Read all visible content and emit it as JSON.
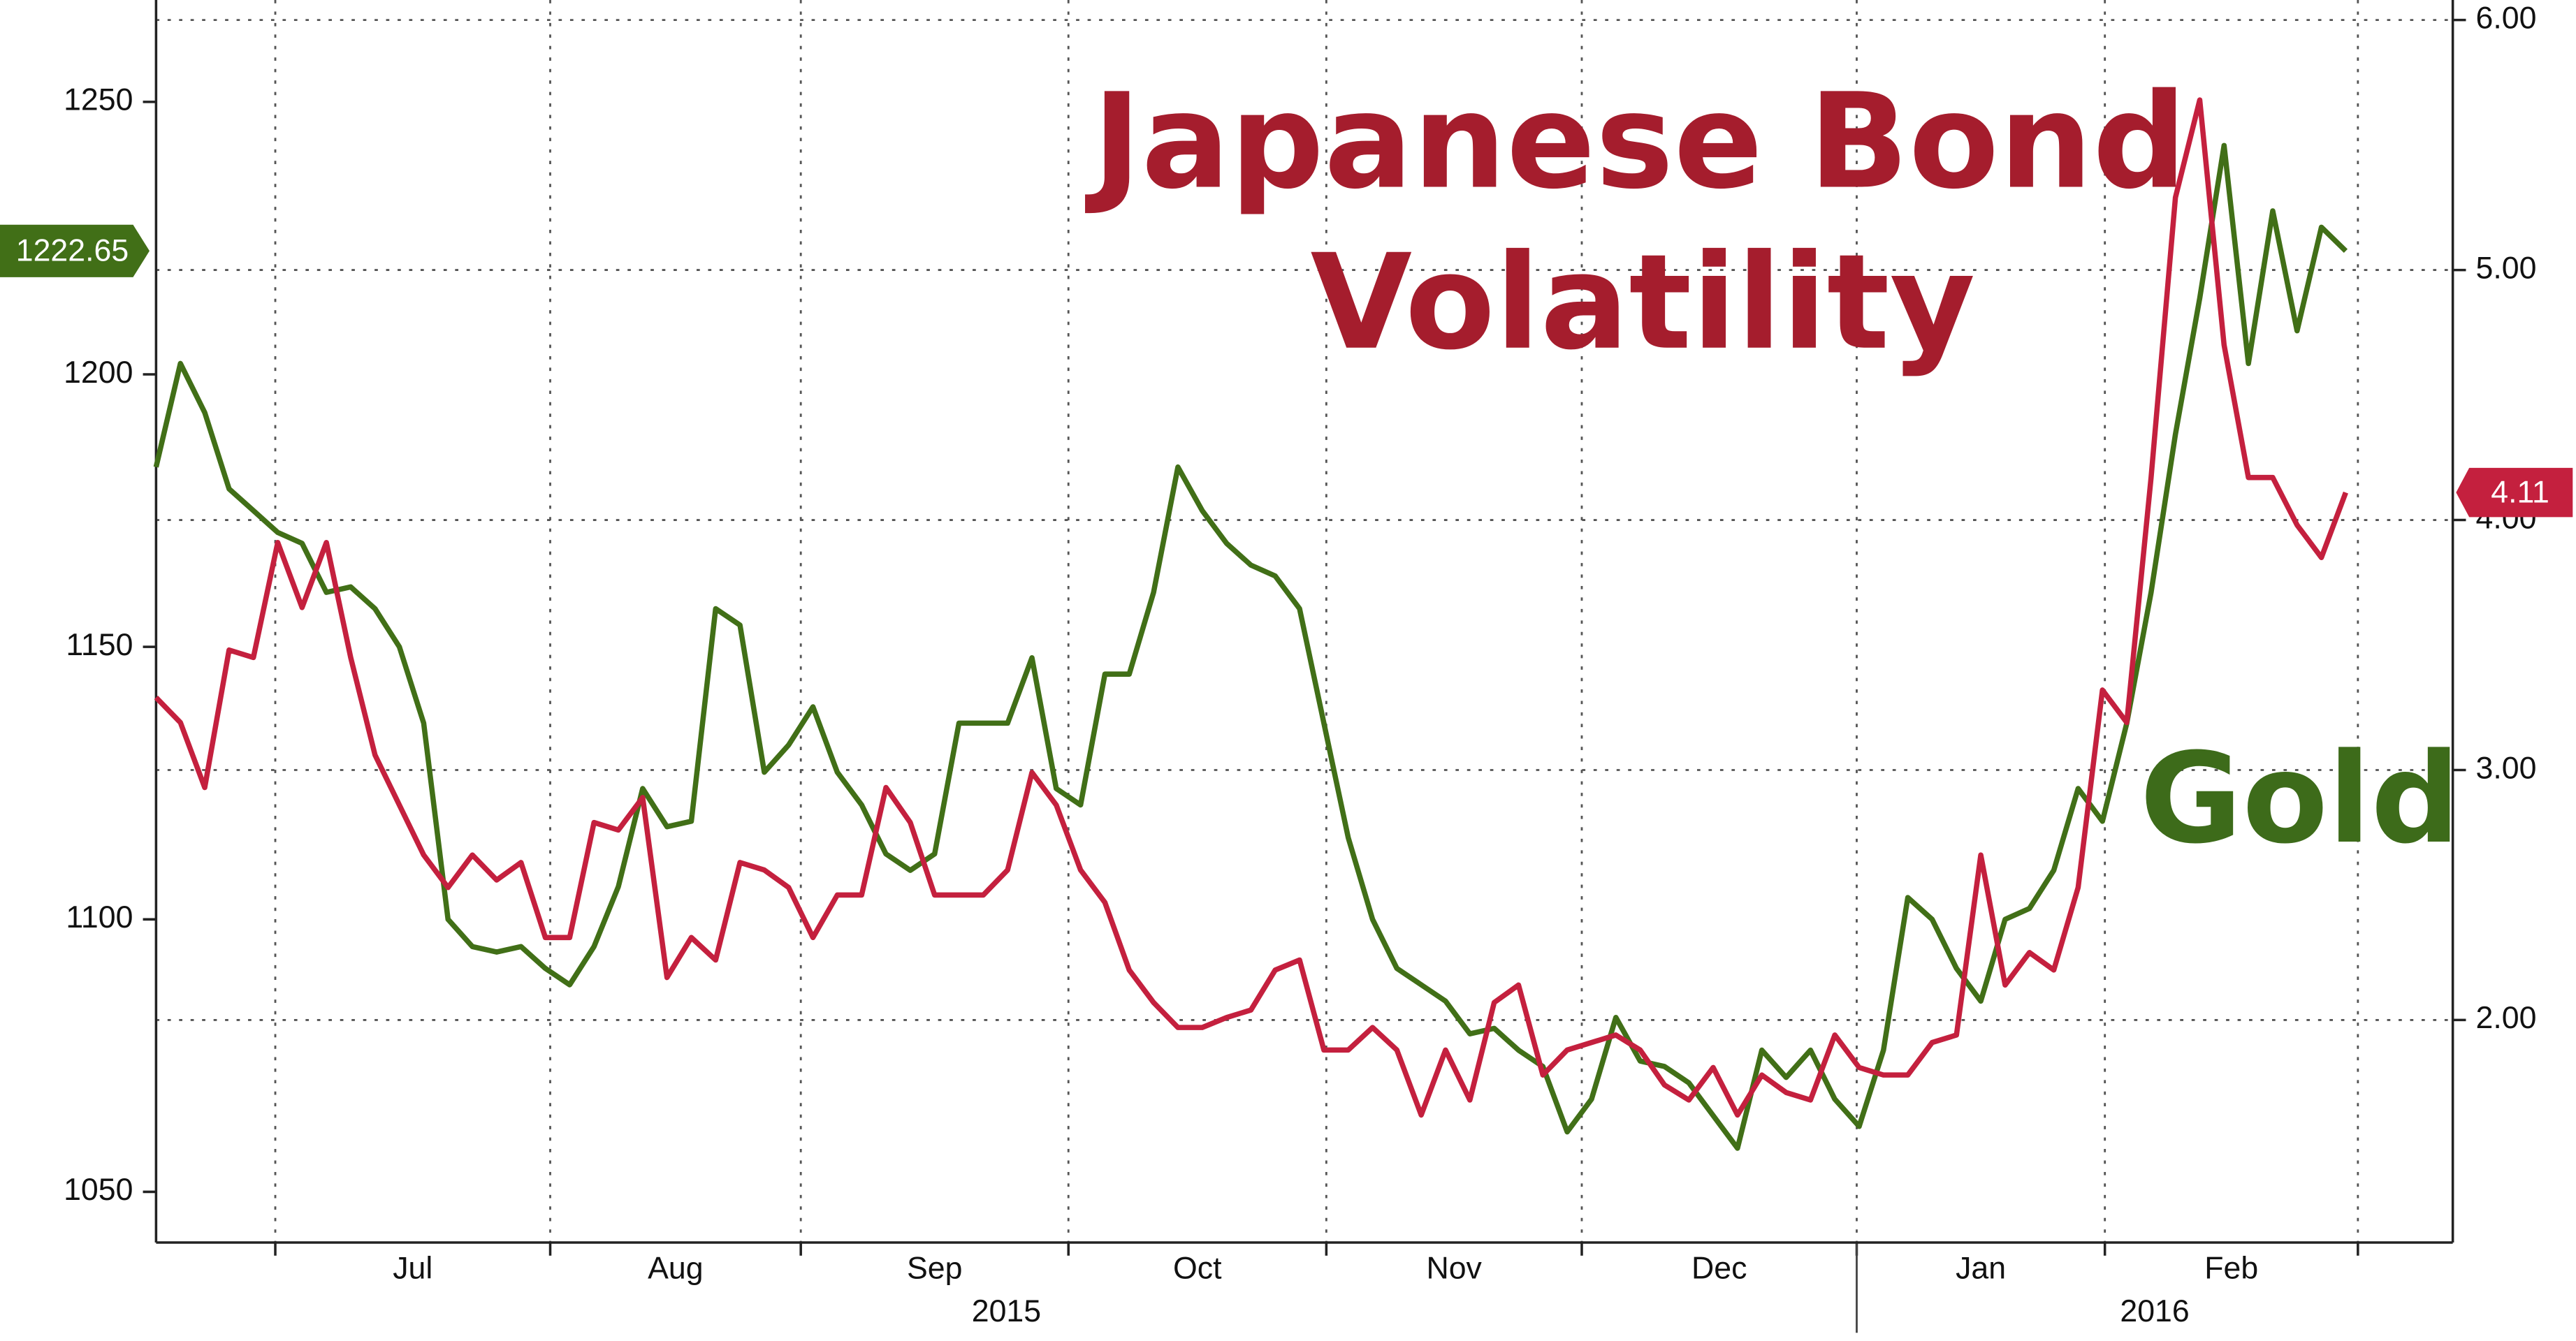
{
  "chart_data": {
    "type": "line",
    "annotations": [
      "Japanese Bond",
      "Volatility",
      "Gold"
    ],
    "annotation_colors": [
      "#a51d2d",
      "#3d6b1a"
    ],
    "xlim": [
      0,
      94.4
    ],
    "xticks": [
      4.9,
      16.2,
      26.5,
      37.5,
      48.1,
      58.6,
      69.9,
      80.1,
      90.5
    ],
    "x_labels": [
      "Jul",
      "Aug",
      "Sep",
      "Oct",
      "Nov",
      "Dec",
      "Jan",
      "Feb"
    ],
    "year_labels": [
      "2015",
      "2016"
    ],
    "ylim": [
      1040.7,
      1268.7
    ],
    "yticks": [
      1050,
      1100,
      1150,
      1200,
      1250
    ],
    "y2lim": [
      1.11,
      6.08
    ],
    "y2ticks": [
      {
        "value": 2,
        "label": "2.00"
      },
      {
        "value": 3,
        "label": "3.00"
      },
      {
        "value": 4,
        "label": "4.00"
      },
      {
        "value": 5,
        "label": "5.00"
      },
      {
        "value": 6,
        "label": "6.00"
      }
    ],
    "grid": true,
    "series": [
      {
        "color": "#416f17",
        "axis": "y",
        "values": [
          1183,
          1202,
          1193,
          1179,
          1175,
          1171,
          1169,
          1160,
          1161,
          1157,
          1150,
          1136,
          1100,
          1095,
          1094,
          1095,
          1091,
          1088,
          1095,
          1106,
          1124,
          1117,
          1118,
          1157,
          1154,
          1127,
          1132,
          1139,
          1127,
          1121,
          1112,
          1109,
          1112,
          1136,
          1136,
          1136,
          1148,
          1124,
          1121,
          1145,
          1145,
          1160,
          1183,
          1175,
          1169,
          1165,
          1163,
          1157,
          1136,
          1115,
          1100,
          1091,
          1088,
          1085,
          1079,
          1080,
          1076,
          1073,
          1061,
          1067,
          1082,
          1074,
          1073,
          1070,
          1064,
          1058,
          1076,
          1071,
          1076,
          1067,
          1062,
          1076,
          1104,
          1100,
          1091,
          1085,
          1100,
          1102,
          1109,
          1124,
          1118,
          1136,
          1160,
          1189,
          1214,
          1242,
          1202,
          1230,
          1208,
          1227,
          1222.65
        ],
        "last_label": "1222.65"
      },
      {
        "color": "#c4203e",
        "axis": "y2",
        "values": [
          3.29,
          3.19,
          2.93,
          3.48,
          3.45,
          3.91,
          3.65,
          3.91,
          3.45,
          3.06,
          2.86,
          2.66,
          2.53,
          2.66,
          2.56,
          2.63,
          2.33,
          2.33,
          2.79,
          2.76,
          2.89,
          2.17,
          2.33,
          2.24,
          2.63,
          2.6,
          2.53,
          2.33,
          2.5,
          2.5,
          2.93,
          2.79,
          2.5,
          2.5,
          2.5,
          2.6,
          2.99,
          2.86,
          2.6,
          2.47,
          2.2,
          2.07,
          1.97,
          1.97,
          2.01,
          2.04,
          2.2,
          2.24,
          1.88,
          1.88,
          1.97,
          1.88,
          1.62,
          1.88,
          1.68,
          2.07,
          2.14,
          1.78,
          1.88,
          1.91,
          1.94,
          1.88,
          1.74,
          1.68,
          1.81,
          1.62,
          1.78,
          1.71,
          1.68,
          1.94,
          1.81,
          1.78,
          1.78,
          1.91,
          1.94,
          2.66,
          2.14,
          2.27,
          2.2,
          2.53,
          3.32,
          3.19,
          4.17,
          5.29,
          5.68,
          4.7,
          4.17,
          4.17,
          3.98,
          3.85,
          4.11
        ],
        "last_label": "4.11"
      }
    ]
  }
}
